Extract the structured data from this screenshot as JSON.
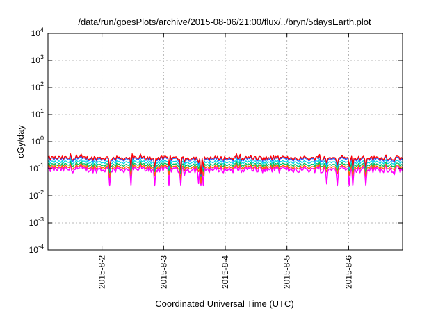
{
  "chart_data": {
    "type": "line",
    "title": "/data/run/goesPlots/archive/2015-08-06/21:00/flux/../bryn/5daysEarth.plot",
    "xlabel": "Coordinated Universal Time (UTC)",
    "ylabel": "cGy/day",
    "yscale": "log",
    "ylim": [
      0.0001,
      10000
    ],
    "y_ticks": [
      {
        "base": "10",
        "exp": "-4",
        "value": 0.0001
      },
      {
        "base": "10",
        "exp": "-3",
        "value": 0.001
      },
      {
        "base": "10",
        "exp": "-2",
        "value": 0.01
      },
      {
        "base": "10",
        "exp": "-1",
        "value": 0.1
      },
      {
        "base": "10",
        "exp": "0",
        "value": 1
      },
      {
        "base": "10",
        "exp": "1",
        "value": 10
      },
      {
        "base": "10",
        "exp": "2",
        "value": 100
      },
      {
        "base": "10",
        "exp": "3",
        "value": 1000
      },
      {
        "base": "10",
        "exp": "4",
        "value": 10000
      }
    ],
    "xlim": [
      "2015-08-01T03:00",
      "2015-08-06T21:00"
    ],
    "x_ticks": [
      {
        "label": "2015-8-2",
        "value": "2015-08-02T00:00"
      },
      {
        "label": "2015-8-3",
        "value": "2015-08-03T00:00"
      },
      {
        "label": "2015-8-4",
        "value": "2015-08-04T00:00"
      },
      {
        "label": "2015-8-5",
        "value": "2015-08-05T00:00"
      },
      {
        "label": "2015-8-6",
        "value": "2015-08-06T00:00"
      }
    ],
    "grid": true,
    "legend": "none",
    "series": [
      {
        "color": "#ff00ff",
        "base": 0.095,
        "spread": 0.18
      },
      {
        "color": "#ff6000",
        "base": 0.115,
        "spread": 0.12
      },
      {
        "color": "#00c060",
        "base": 0.14,
        "spread": 0.1
      },
      {
        "color": "#00d8e8",
        "base": 0.175,
        "spread": 0.1
      },
      {
        "color": "#2060ff",
        "base": 0.225,
        "spread": 0.12
      },
      {
        "color": "#ff0000",
        "base": 0.25,
        "spread": 0.12
      }
    ]
  }
}
